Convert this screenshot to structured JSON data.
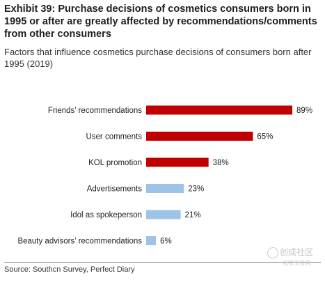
{
  "title": "Exhibit 39: Purchase decisions of cosmetics consumers born in 1995 or after are greatly affected by recommendations/comments from other consumers",
  "subtitle": "Factors that influence cosmetics purchase decisions of consumers born after 1995 (2019)",
  "source": "Source: Southcn Survey, Perfect Diary",
  "watermark": {
    "main": "创成社区",
    "sub": "化妆交易网"
  },
  "colors": {
    "highlight": "#c00000",
    "muted": "#9dc3e6",
    "label": "#222222"
  },
  "chart_data": {
    "type": "bar",
    "orientation": "horizontal",
    "title": "",
    "xlabel": "",
    "ylabel": "",
    "categories": [
      "Friends’ recommendations",
      "User comments",
      "KOL promotion",
      "Advertisements",
      "Idol as spokeperson",
      "Beauty advisors’ recommendations"
    ],
    "values": [
      89,
      65,
      38,
      23,
      21,
      6
    ],
    "value_labels": [
      "89%",
      "65%",
      "38%",
      "23%",
      "21%",
      "6%"
    ],
    "highlight_count": 3,
    "xlim": [
      0,
      100
    ],
    "grid": false,
    "legend": "none"
  }
}
